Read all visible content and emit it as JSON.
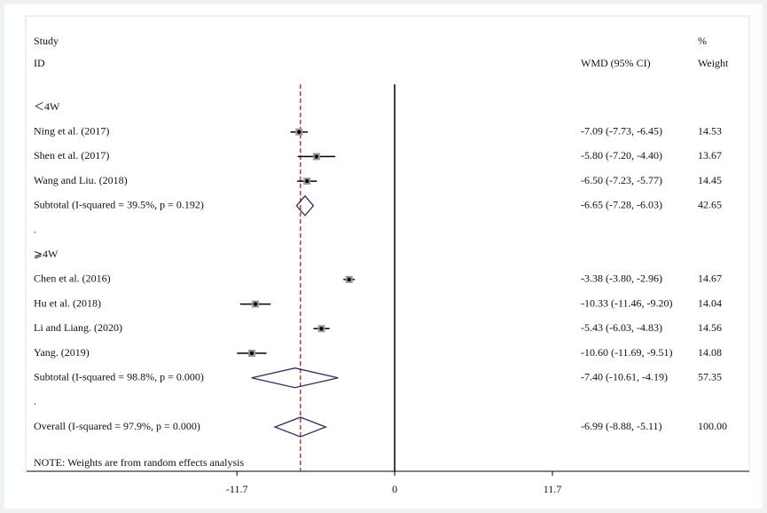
{
  "chart_data": {
    "type": "forest",
    "headers": {
      "study": "Study",
      "id": "ID",
      "effect": "WMD (95% CI)",
      "weight_top": "%",
      "weight": "Weight"
    },
    "xlim": [
      -27.3,
      26.3
    ],
    "xticks": [
      -11.7,
      0,
      11.7
    ],
    "reference_line": 0,
    "pooled_line_color": "#b22222",
    "diamond_color": "#2b2f5e",
    "box_color": "#9a9a9a",
    "groups": [
      {
        "label": "＜4W",
        "studies": [
          {
            "name": "Ning et al. (2017)",
            "estimate": -7.09,
            "lower": -7.73,
            "upper": -6.45,
            "effect_label": "-7.09 (-7.73, -6.45)",
            "weight": "14.53"
          },
          {
            "name": "Shen et al. (2017)",
            "estimate": -5.8,
            "lower": -7.2,
            "upper": -4.4,
            "effect_label": "-5.80 (-7.20, -4.40)",
            "weight": "13.67"
          },
          {
            "name": "Wang and Liu. (2018)",
            "estimate": -6.5,
            "lower": -7.23,
            "upper": -5.77,
            "effect_label": "-6.50 (-7.23, -5.77)",
            "weight": "14.45"
          }
        ],
        "subtotal": {
          "name": "Subtotal  (I-squared = 39.5%, p = 0.192)",
          "estimate": -6.65,
          "lower": -7.28,
          "upper": -6.03,
          "effect_label": "-6.65 (-7.28, -6.03)",
          "weight": "42.65"
        },
        "trailing_text": "."
      },
      {
        "label": "⩾4W",
        "studies": [
          {
            "name": "Chen et al. (2016)",
            "estimate": -3.38,
            "lower": -3.8,
            "upper": -2.96,
            "effect_label": "-3.38 (-3.80, -2.96)",
            "weight": "14.67"
          },
          {
            "name": "Hu et al. (2018)",
            "estimate": -10.33,
            "lower": -11.46,
            "upper": -9.2,
            "effect_label": "-10.33 (-11.46, -9.20)",
            "weight": "14.04"
          },
          {
            "name": "Li and Liang. (2020)",
            "estimate": -5.43,
            "lower": -6.03,
            "upper": -4.83,
            "effect_label": "-5.43 (-6.03, -4.83)",
            "weight": "14.56"
          },
          {
            "name": "Yang. (2019)",
            "estimate": -10.6,
            "lower": -11.69,
            "upper": -9.51,
            "effect_label": "-10.60 (-11.69, -9.51)",
            "weight": "14.08"
          }
        ],
        "subtotal": {
          "name": "Subtotal  (I-squared = 98.8%, p = 0.000)",
          "estimate": -7.4,
          "lower": -10.61,
          "upper": -4.19,
          "effect_label": "-7.40 (-10.61, -4.19)",
          "weight": "57.35"
        },
        "trailing_text": "."
      }
    ],
    "overall": {
      "name": "Overall  (I-squared = 97.9%, p = 0.000)",
      "estimate": -6.99,
      "lower": -8.88,
      "upper": -5.11,
      "effect_label": "-6.99 (-8.88, -5.11)",
      "weight": "100.00"
    },
    "note": "NOTE: Weights are from random effects analysis"
  }
}
